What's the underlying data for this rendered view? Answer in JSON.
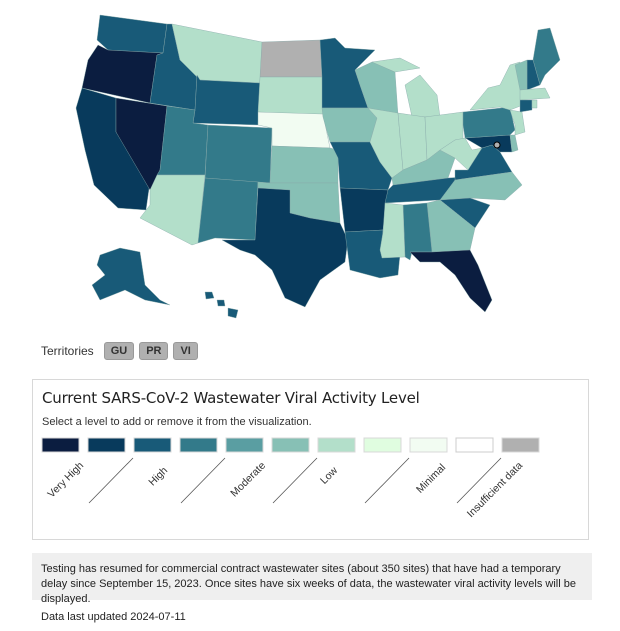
{
  "colors": {
    "levels": [
      "#0b1d40",
      "#083a5c",
      "#185a78",
      "#337a8a",
      "#5a9ea2",
      "#87c0b5",
      "#b3dfca",
      "#e0fde0",
      "#f2fcf2",
      "#ffffff",
      "#b0b0b0"
    ],
    "dc_marker": "#b0b0b0"
  },
  "map": {
    "states": [
      {
        "code": "WA",
        "level": 2
      },
      {
        "code": "OR",
        "level": 0
      },
      {
        "code": "CA",
        "level": 1
      },
      {
        "code": "NV",
        "level": 0
      },
      {
        "code": "ID",
        "level": 2
      },
      {
        "code": "MT",
        "level": 6
      },
      {
        "code": "WY",
        "level": 2
      },
      {
        "code": "UT",
        "level": 3
      },
      {
        "code": "AZ",
        "level": 6
      },
      {
        "code": "CO",
        "level": 3
      },
      {
        "code": "NM",
        "level": 3
      },
      {
        "code": "ND",
        "level": 10
      },
      {
        "code": "SD",
        "level": 6
      },
      {
        "code": "NE",
        "level": 8
      },
      {
        "code": "KS",
        "level": 5
      },
      {
        "code": "OK",
        "level": 5
      },
      {
        "code": "TX",
        "level": 1
      },
      {
        "code": "MN",
        "level": 2
      },
      {
        "code": "IA",
        "level": 5
      },
      {
        "code": "MO",
        "level": 2
      },
      {
        "code": "AR",
        "level": 1
      },
      {
        "code": "LA",
        "level": 2
      },
      {
        "code": "WI",
        "level": 5
      },
      {
        "code": "IL",
        "level": 6
      },
      {
        "code": "MI",
        "level": 6
      },
      {
        "code": "IN",
        "level": 6
      },
      {
        "code": "OH",
        "level": 6
      },
      {
        "code": "KY",
        "level": 5
      },
      {
        "code": "TN",
        "level": 2
      },
      {
        "code": "WV",
        "level": 6
      },
      {
        "code": "VA",
        "level": 2
      },
      {
        "code": "MD",
        "level": 1
      },
      {
        "code": "PA",
        "level": 3
      },
      {
        "code": "NY",
        "level": 6
      },
      {
        "code": "NJ",
        "level": 6
      },
      {
        "code": "DE",
        "level": 5
      },
      {
        "code": "NC",
        "level": 5
      },
      {
        "code": "SC",
        "level": 2
      },
      {
        "code": "GA",
        "level": 5
      },
      {
        "code": "AL",
        "level": 3
      },
      {
        "code": "MS",
        "level": 6
      },
      {
        "code": "FL",
        "level": 0
      },
      {
        "code": "ME",
        "level": 3
      },
      {
        "code": "NH",
        "level": 2
      },
      {
        "code": "VT",
        "level": 5
      },
      {
        "code": "MA",
        "level": 6
      },
      {
        "code": "CT",
        "level": 2
      },
      {
        "code": "RI",
        "level": 6
      },
      {
        "code": "AK",
        "level": 2
      },
      {
        "code": "HI",
        "level": 2
      }
    ]
  },
  "territories": {
    "label": "Territories",
    "items": [
      "GU",
      "PR",
      "VI"
    ]
  },
  "legend": {
    "title": "Current SARS-CoV-2 Wastewater Viral Activity Level",
    "instruction": "Select a level to add or remove it from the visualization.",
    "labels": [
      "Very High",
      "High",
      "Moderate",
      "Low",
      "Minimal",
      "Insufficient data"
    ]
  },
  "note": "Testing has resumed for commercial contract wastewater sites (about 350 sites) that have had a temporary delay since September 15, 2023. Once sites have six weeks of data, the wastewater viral activity levels will be displayed.",
  "updated": "Data last updated 2024-07-11"
}
